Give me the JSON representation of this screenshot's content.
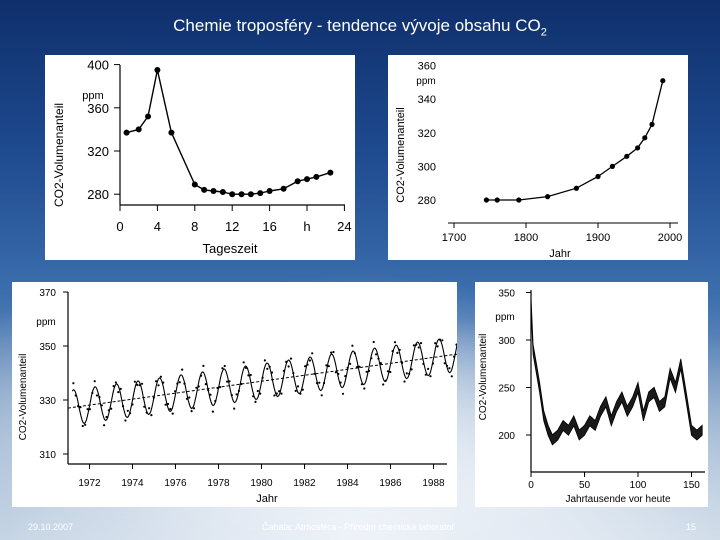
{
  "slide": {
    "title": "Chemie troposféry - tendence vývoje obsahu CO",
    "title_sub": "2",
    "footer_left": "29.10.2007",
    "footer_center": "Čabala: Atmosféra - Přírodní chemická laboratoř",
    "footer_right": "15"
  },
  "chart_data": [
    {
      "type": "line",
      "xlabel": "Tageszeit",
      "ylabel": "CO2-Volumenanteil",
      "yunit": "ppm",
      "xunit": "h",
      "xticks": [
        "0",
        "4",
        "8",
        "12",
        "16",
        "h",
        "24"
      ],
      "yticks": [
        "280",
        "320",
        "360",
        "400"
      ],
      "x": [
        0.7,
        2,
        3,
        4,
        5.5,
        8,
        9,
        10,
        11,
        12,
        13,
        14,
        15,
        16,
        17.5,
        19,
        20,
        21,
        22.5
      ],
      "y": [
        337,
        340,
        352,
        395,
        337,
        289,
        284,
        283,
        282,
        280,
        280,
        280,
        281,
        283,
        285,
        292,
        294,
        296,
        300
      ]
    },
    {
      "type": "line",
      "xlabel": "Jahr",
      "ylabel": "CO2-Volumenanteil",
      "yunit": "ppm",
      "xticks": [
        "1700",
        "1800",
        "1900",
        "2000"
      ],
      "yticks": [
        "280",
        "300",
        "320",
        "340",
        "360"
      ],
      "x": [
        1745,
        1760,
        1790,
        1830,
        1870,
        1900,
        1920,
        1940,
        1955,
        1965,
        1975,
        1990
      ],
      "y": [
        280,
        280,
        280,
        282,
        287,
        294,
        300,
        306,
        311,
        317,
        325,
        351
      ]
    },
    {
      "type": "line",
      "xlabel": "Jahr",
      "ylabel": "CO2-Volumenanteil",
      "yunit": "ppm",
      "xticks": [
        "1972",
        "1974",
        "1976",
        "1978",
        "1980",
        "1982",
        "1984",
        "1986",
        "1988"
      ],
      "yticks": [
        "310",
        "330",
        "350",
        "370"
      ],
      "trend_x": [
        1971,
        1990
      ],
      "trend_y": [
        327,
        348
      ]
    },
    {
      "type": "line",
      "xlabel": "Jahrtausende vor heute",
      "ylabel": "CO2-Volumenanteil",
      "yunit": "ppm",
      "xticks": [
        "0",
        "50",
        "100",
        "150"
      ],
      "yticks": [
        "200",
        "250",
        "300",
        "350"
      ],
      "x": [
        0,
        2,
        5,
        8,
        12,
        16,
        20,
        25,
        30,
        35,
        40,
        45,
        50,
        55,
        60,
        65,
        70,
        75,
        80,
        85,
        90,
        95,
        100,
        105,
        110,
        115,
        120,
        125,
        130,
        135,
        140,
        145,
        150,
        155,
        160
      ],
      "y": [
        340,
        290,
        270,
        250,
        220,
        205,
        195,
        200,
        210,
        205,
        215,
        200,
        205,
        215,
        210,
        225,
        235,
        215,
        230,
        240,
        225,
        235,
        250,
        220,
        240,
        245,
        230,
        235,
        265,
        250,
        275,
        240,
        205,
        200,
        205
      ]
    }
  ]
}
